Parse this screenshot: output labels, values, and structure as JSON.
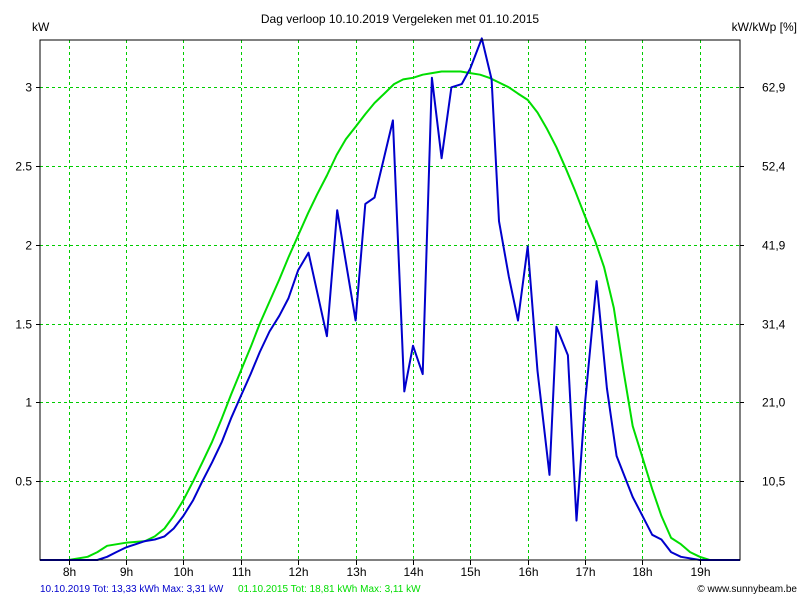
{
  "chart_data": {
    "type": "line",
    "title": "Dag  verloop 10.10.2019   Vergeleken met 01.10.2015",
    "ylabel_left": "kW",
    "ylabel_right": "kW/kWp [%]",
    "xlim": [
      7.5,
      19.7
    ],
    "ylim": [
      0,
      3.3
    ],
    "grid": true,
    "x_ticks": [
      8,
      9,
      10,
      11,
      12,
      13,
      14,
      15,
      16,
      17,
      18,
      19
    ],
    "x_tick_labels": [
      "8h",
      "9h",
      "10h",
      "11h",
      "12h",
      "13h",
      "14h",
      "15h",
      "16h",
      "17h",
      "18h",
      "19h"
    ],
    "y_ticks": [
      0.5,
      1,
      1.5,
      2,
      2.5,
      3
    ],
    "y_tick_labels": [
      "0.5",
      "1",
      "1.5",
      "2",
      "2.5",
      "3"
    ],
    "y_right_tick_labels": [
      "10,5",
      "21,0",
      "31,4",
      "41,9",
      "52,4",
      "62,9"
    ],
    "series": [
      {
        "name": "10.10.2019",
        "color": "#0000cc",
        "x": [
          7.5,
          8.5,
          8.67,
          8.83,
          9.0,
          9.17,
          9.33,
          9.5,
          9.67,
          9.83,
          10.0,
          10.17,
          10.33,
          10.5,
          10.67,
          10.83,
          11.0,
          11.17,
          11.33,
          11.5,
          11.67,
          11.83,
          12.0,
          12.18,
          12.5,
          12.68,
          13.0,
          13.17,
          13.33,
          13.5,
          13.65,
          13.85,
          14.0,
          14.17,
          14.33,
          14.5,
          14.67,
          14.85,
          15.0,
          15.2,
          15.37,
          15.5,
          15.67,
          15.83,
          16.0,
          16.17,
          16.38,
          16.5,
          16.7,
          16.85,
          17.0,
          17.2,
          17.38,
          17.55,
          17.83,
          18.0,
          18.17,
          18.33,
          18.5,
          18.67,
          19.0,
          19.7
        ],
        "values": [
          0.0,
          0.0,
          0.02,
          0.05,
          0.08,
          0.1,
          0.12,
          0.13,
          0.15,
          0.2,
          0.28,
          0.38,
          0.5,
          0.62,
          0.75,
          0.9,
          1.04,
          1.18,
          1.32,
          1.45,
          1.55,
          1.66,
          1.84,
          1.95,
          1.42,
          2.22,
          1.52,
          2.26,
          2.3,
          2.56,
          2.79,
          1.07,
          1.36,
          1.18,
          3.06,
          2.55,
          3.0,
          3.02,
          3.12,
          3.31,
          3.05,
          2.15,
          1.8,
          1.52,
          1.99,
          1.2,
          0.54,
          1.48,
          1.3,
          0.25,
          1.0,
          1.77,
          1.09,
          0.66,
          0.4,
          0.28,
          0.16,
          0.13,
          0.05,
          0.02,
          0.0,
          0.0
        ]
      },
      {
        "name": "01.10.2015",
        "color": "#00dd00",
        "x": [
          7.5,
          8.0,
          8.33,
          8.5,
          8.67,
          9.0,
          9.33,
          9.5,
          9.67,
          9.83,
          10.0,
          10.17,
          10.33,
          10.5,
          10.67,
          10.83,
          11.0,
          11.17,
          11.33,
          11.5,
          11.67,
          11.83,
          12.0,
          12.17,
          12.33,
          12.5,
          12.67,
          12.83,
          13.0,
          13.17,
          13.33,
          13.5,
          13.67,
          13.83,
          14.0,
          14.17,
          14.33,
          14.5,
          14.67,
          14.83,
          15.0,
          15.17,
          15.33,
          15.5,
          15.67,
          15.83,
          16.0,
          16.17,
          16.33,
          16.5,
          16.67,
          16.83,
          17.0,
          17.17,
          17.33,
          17.5,
          17.67,
          17.83,
          18.0,
          18.17,
          18.33,
          18.5,
          18.67,
          18.83,
          19.0,
          19.17,
          19.7
        ],
        "values": [
          0.0,
          0.0,
          0.02,
          0.05,
          0.09,
          0.11,
          0.12,
          0.15,
          0.2,
          0.28,
          0.38,
          0.5,
          0.62,
          0.75,
          0.9,
          1.05,
          1.2,
          1.35,
          1.5,
          1.64,
          1.78,
          1.92,
          2.06,
          2.2,
          2.32,
          2.44,
          2.57,
          2.67,
          2.75,
          2.83,
          2.9,
          2.96,
          3.02,
          3.05,
          3.06,
          3.08,
          3.09,
          3.1,
          3.1,
          3.1,
          3.09,
          3.08,
          3.06,
          3.03,
          3.0,
          2.96,
          2.92,
          2.84,
          2.74,
          2.62,
          2.48,
          2.34,
          2.18,
          2.03,
          1.86,
          1.6,
          1.2,
          0.85,
          0.65,
          0.45,
          0.28,
          0.14,
          0.1,
          0.05,
          0.02,
          0.0,
          0.0
        ]
      }
    ]
  },
  "footer": {
    "left_text": "10.10.2019 Tot: 13,33 kWh Max: 3,31 kW",
    "left_color": "#0000cc",
    "mid_text": "01.10.2015 Tot: 18,81 kWh Max: 3,11 kW",
    "mid_color": "#00dd00",
    "right_text": "© www.sunnybeam.be"
  }
}
